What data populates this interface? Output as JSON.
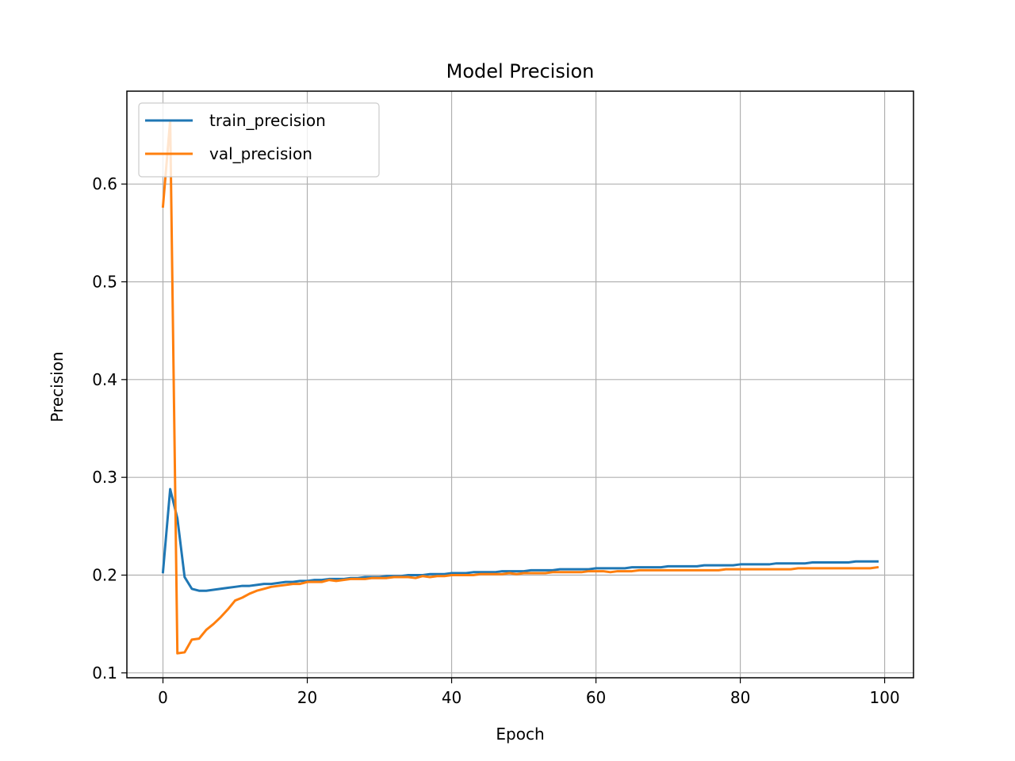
{
  "chart_data": {
    "type": "line",
    "title": "Model Precision",
    "xlabel": "Epoch",
    "ylabel": "Precision",
    "xlim": [
      -5,
      104
    ],
    "ylim": [
      0.095,
      0.695
    ],
    "xticks": [
      0,
      20,
      40,
      60,
      80,
      100
    ],
    "yticks": [
      0.1,
      0.2,
      0.3,
      0.4,
      0.5,
      0.6
    ],
    "ytick_labels": [
      "0.1",
      "0.2",
      "0.3",
      "0.4",
      "0.5",
      "0.6"
    ],
    "grid": true,
    "legend_position": "upper-left",
    "series": [
      {
        "name": "train_precision",
        "color": "#1f77b4",
        "x_start": 0,
        "values": [
          0.203,
          0.288,
          0.258,
          0.198,
          0.186,
          0.184,
          0.184,
          0.185,
          0.186,
          0.187,
          0.188,
          0.189,
          0.189,
          0.19,
          0.191,
          0.191,
          0.192,
          0.193,
          0.193,
          0.194,
          0.194,
          0.195,
          0.195,
          0.196,
          0.196,
          0.196,
          0.197,
          0.197,
          0.198,
          0.198,
          0.198,
          0.199,
          0.199,
          0.199,
          0.2,
          0.2,
          0.2,
          0.201,
          0.201,
          0.201,
          0.202,
          0.202,
          0.202,
          0.203,
          0.203,
          0.203,
          0.203,
          0.204,
          0.204,
          0.204,
          0.204,
          0.205,
          0.205,
          0.205,
          0.205,
          0.206,
          0.206,
          0.206,
          0.206,
          0.206,
          0.207,
          0.207,
          0.207,
          0.207,
          0.207,
          0.208,
          0.208,
          0.208,
          0.208,
          0.208,
          0.209,
          0.209,
          0.209,
          0.209,
          0.209,
          0.21,
          0.21,
          0.21,
          0.21,
          0.21,
          0.211,
          0.211,
          0.211,
          0.211,
          0.211,
          0.212,
          0.212,
          0.212,
          0.212,
          0.212,
          0.213,
          0.213,
          0.213,
          0.213,
          0.213,
          0.213,
          0.214,
          0.214,
          0.214,
          0.214
        ]
      },
      {
        "name": "val_precision",
        "color": "#ff7f0e",
        "x_start": 0,
        "values": [
          0.577,
          0.665,
          0.12,
          0.121,
          0.134,
          0.135,
          0.144,
          0.15,
          0.157,
          0.165,
          0.174,
          0.177,
          0.181,
          0.184,
          0.186,
          0.188,
          0.189,
          0.19,
          0.191,
          0.191,
          0.193,
          0.193,
          0.193,
          0.195,
          0.194,
          0.195,
          0.196,
          0.196,
          0.196,
          0.197,
          0.197,
          0.197,
          0.198,
          0.198,
          0.198,
          0.197,
          0.199,
          0.198,
          0.199,
          0.199,
          0.2,
          0.2,
          0.2,
          0.2,
          0.201,
          0.201,
          0.201,
          0.201,
          0.202,
          0.201,
          0.202,
          0.202,
          0.202,
          0.202,
          0.203,
          0.203,
          0.203,
          0.203,
          0.203,
          0.204,
          0.204,
          0.204,
          0.203,
          0.204,
          0.204,
          0.204,
          0.205,
          0.205,
          0.205,
          0.205,
          0.205,
          0.205,
          0.205,
          0.205,
          0.205,
          0.205,
          0.205,
          0.205,
          0.206,
          0.206,
          0.206,
          0.206,
          0.206,
          0.206,
          0.206,
          0.206,
          0.206,
          0.206,
          0.207,
          0.207,
          0.207,
          0.207,
          0.207,
          0.207,
          0.207,
          0.207,
          0.207,
          0.207,
          0.207,
          0.208
        ]
      }
    ]
  }
}
